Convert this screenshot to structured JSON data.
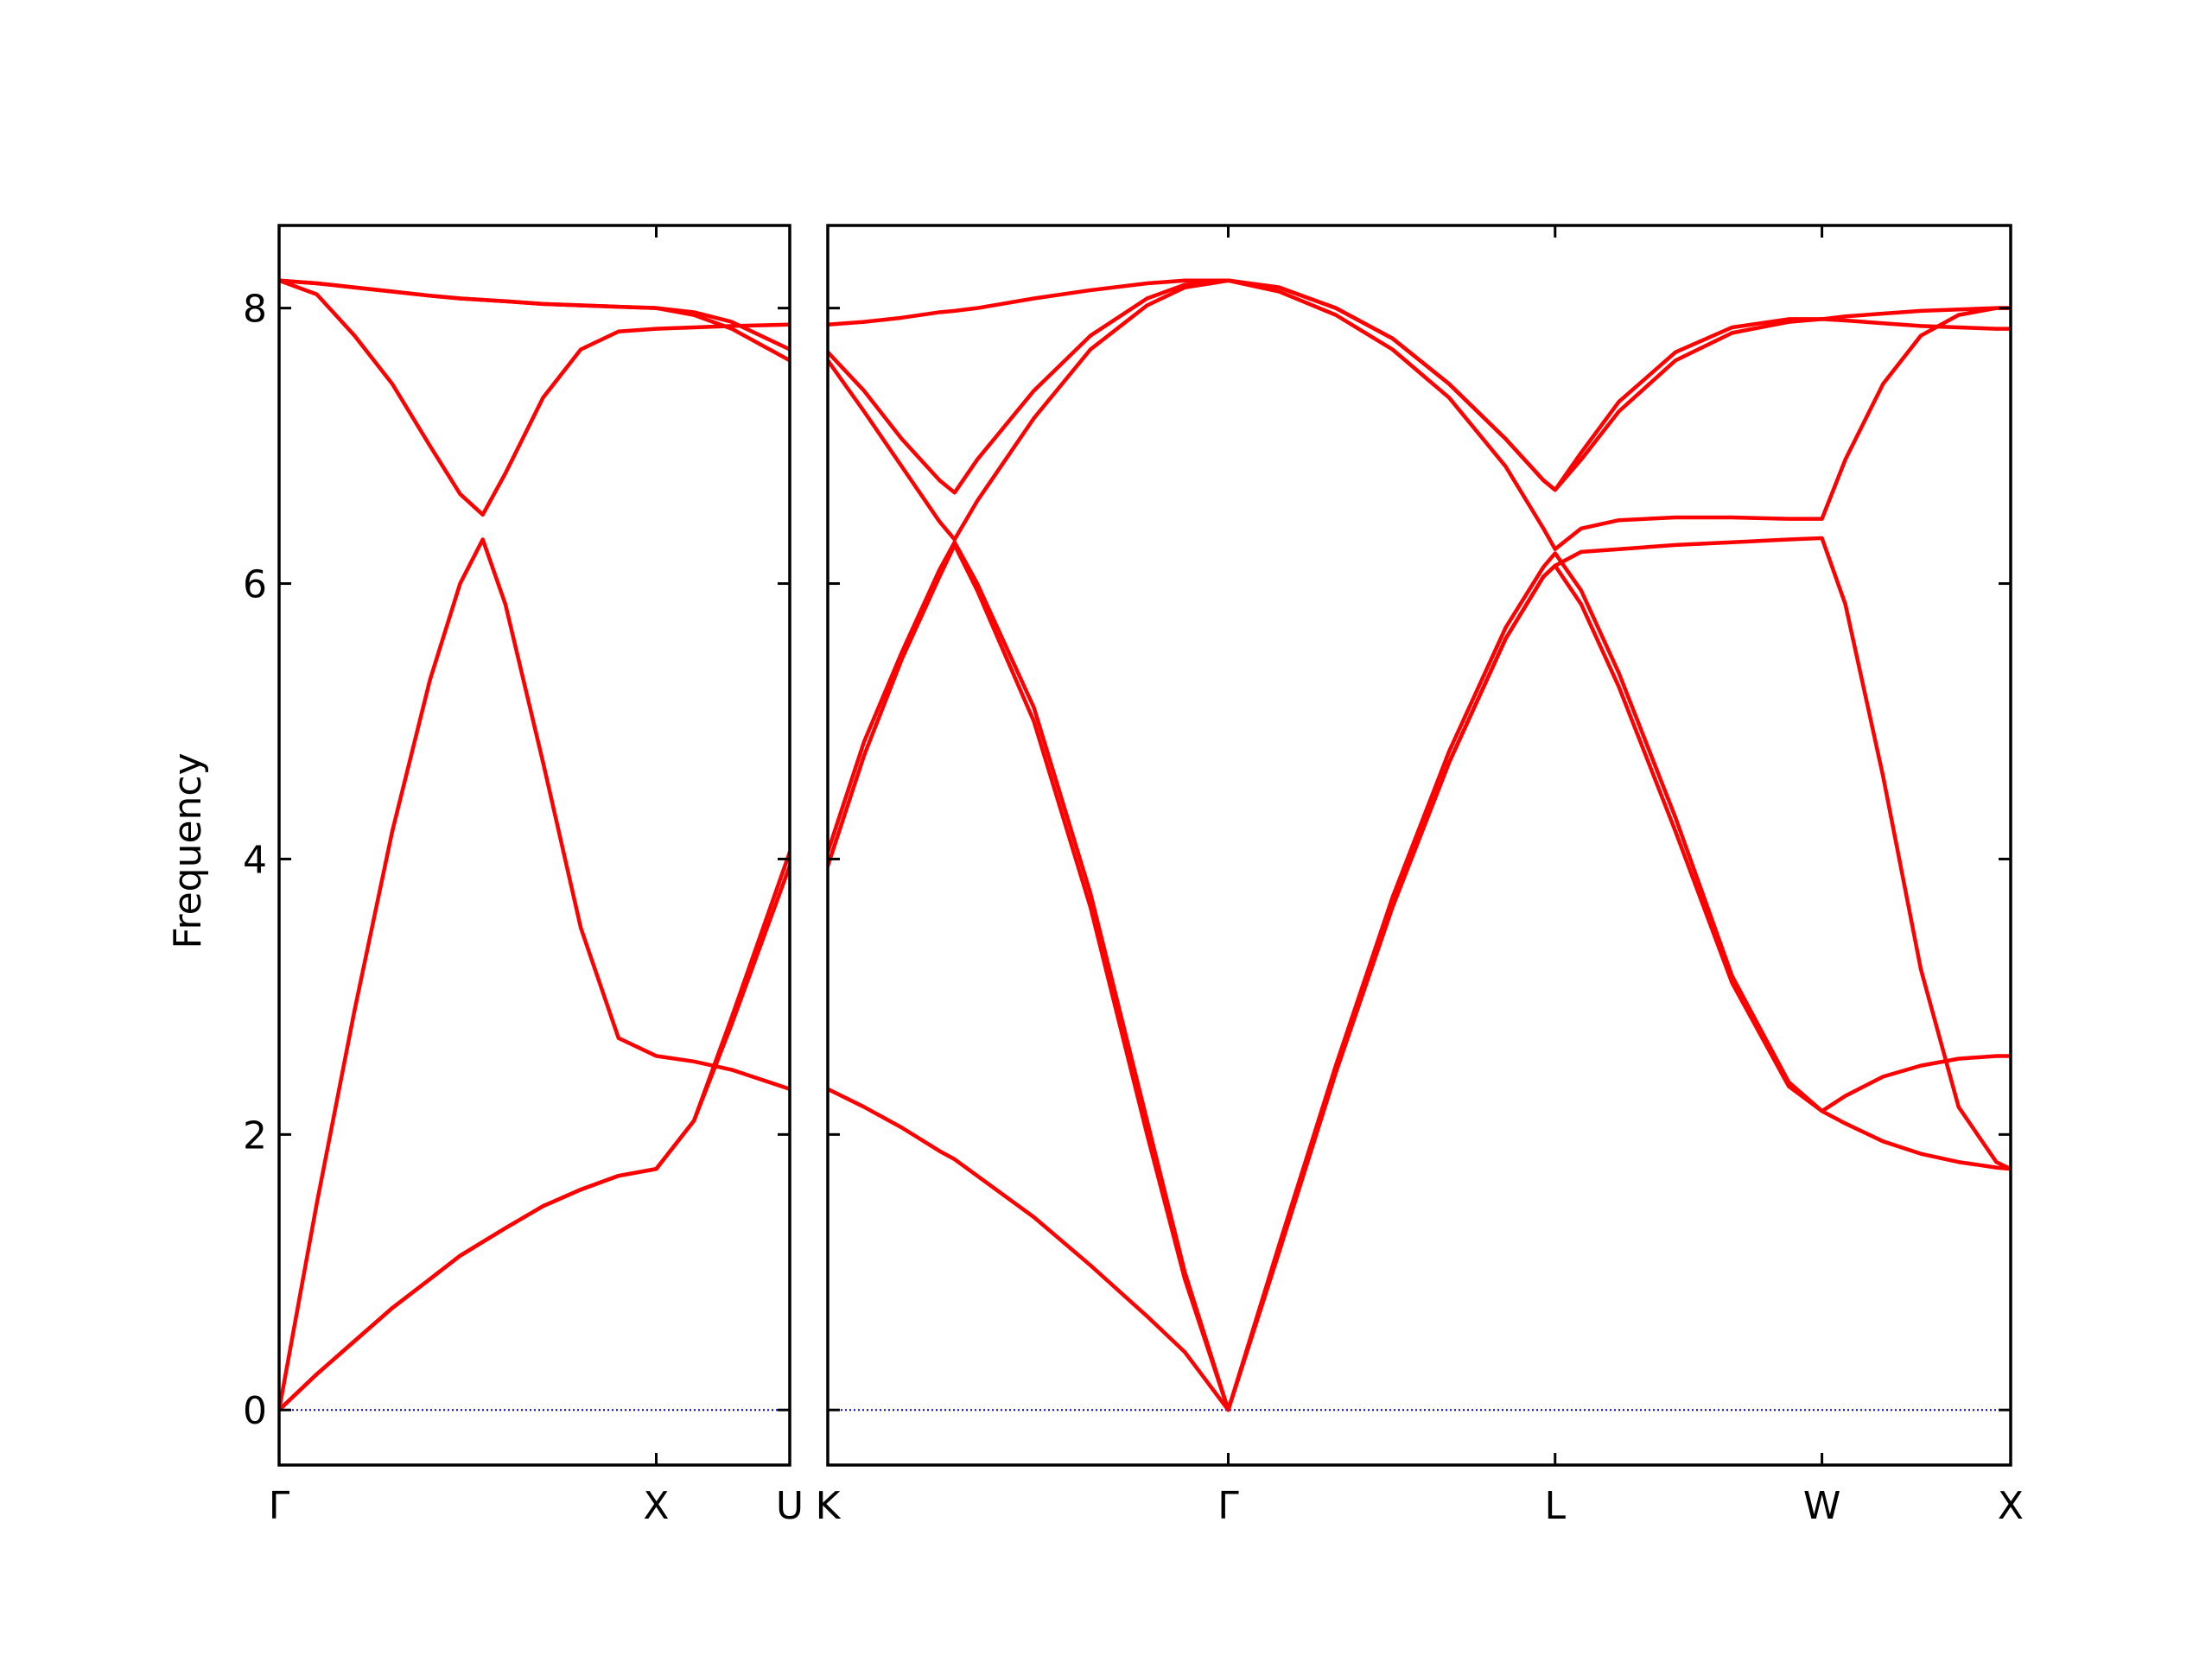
{
  "chart_data": [
    {
      "type": "line",
      "ylabel": "Frequency",
      "x": [
        0,
        0.1,
        0.2,
        0.3,
        0.4,
        0.48,
        0.54,
        0.6,
        0.7,
        0.8,
        0.9,
        1.0,
        1.1,
        1.2,
        1.354
      ],
      "xlim": [
        0,
        1.354
      ],
      "xticks": [
        {
          "value": 0,
          "label": "Γ"
        },
        {
          "value": 1.0,
          "label": "X"
        },
        {
          "value": 1.354,
          "label": "U"
        }
      ],
      "ylim": [
        -0.4,
        8.6
      ],
      "yticks": [
        0,
        2,
        4,
        6,
        8
      ],
      "ytick_labels": true,
      "hline": 0,
      "hline_color": "#0000cc",
      "series": [
        {
          "color": "#ff0000",
          "values": [
            0,
            0.26,
            0.5,
            0.74,
            0.95,
            1.12,
            1.22,
            1.32,
            1.48,
            1.6,
            1.7,
            1.75,
            2.1,
            2.85,
            4.05
          ]
        },
        {
          "color": "#ff0000",
          "values": [
            0,
            0.26,
            0.5,
            0.74,
            0.95,
            1.12,
            1.22,
            1.32,
            1.48,
            1.6,
            1.7,
            1.75,
            2.1,
            2.8,
            3.95
          ]
        },
        {
          "color": "#ff0000",
          "values": [
            0,
            1.5,
            2.9,
            4.2,
            5.3,
            6.0,
            6.32,
            5.85,
            4.7,
            3.5,
            2.7,
            2.57,
            2.53,
            2.47,
            2.33
          ]
        },
        {
          "color": "#ff0000",
          "values": [
            8.2,
            8.1,
            7.8,
            7.45,
            7.0,
            6.65,
            6.5,
            6.8,
            7.35,
            7.7,
            7.83,
            7.85,
            7.86,
            7.87,
            7.88
          ]
        },
        {
          "color": "#ff0000",
          "values": [
            8.2,
            8.18,
            8.15,
            8.12,
            8.09,
            8.07,
            8.06,
            8.05,
            8.03,
            8.02,
            8.01,
            8.0,
            7.95,
            7.85,
            7.62
          ]
        },
        {
          "color": "#ff0000",
          "values": [
            8.2,
            8.18,
            8.15,
            8.12,
            8.09,
            8.07,
            8.06,
            8.05,
            8.03,
            8.02,
            8.01,
            8.0,
            7.97,
            7.9,
            7.7
          ]
        }
      ]
    },
    {
      "type": "line",
      "x": [
        1.354,
        1.45,
        1.55,
        1.65,
        1.69,
        1.75,
        1.9,
        2.05,
        2.2,
        2.3,
        2.415,
        2.55,
        2.7,
        2.85,
        3.0,
        3.15,
        3.25,
        3.281,
        3.35,
        3.45,
        3.6,
        3.75,
        3.9,
        3.988,
        4.05,
        4.15,
        4.25,
        4.35,
        4.45,
        4.488
      ],
      "xlim": [
        1.354,
        4.488
      ],
      "xticks": [
        {
          "value": 1.354,
          "label": "K"
        },
        {
          "value": 2.415,
          "label": "Γ"
        },
        {
          "value": 3.281,
          "label": "L"
        },
        {
          "value": 3.988,
          "label": "W"
        },
        {
          "value": 4.488,
          "label": "X"
        }
      ],
      "ylim": [
        -0.4,
        8.6
      ],
      "yticks": [
        0,
        2,
        4,
        6,
        8
      ],
      "ytick_labels": false,
      "hline": 0,
      "hline_color": "#0000cc",
      "series": [
        {
          "color": "#ff0000",
          "values": [
            2.33,
            2.2,
            2.05,
            1.88,
            1.82,
            1.7,
            1.4,
            1.05,
            0.68,
            0.42,
            0,
            1.15,
            2.45,
            3.65,
            4.7,
            5.6,
            6.05,
            6.13,
            5.85,
            5.25,
            4.2,
            3.1,
            2.35,
            2.17,
            2.08,
            1.95,
            1.86,
            1.8,
            1.76,
            1.75
          ]
        },
        {
          "color": "#ff0000",
          "values": [
            3.95,
            4.75,
            5.45,
            6.05,
            6.28,
            5.95,
            5.0,
            3.65,
            2.0,
            0.95,
            0,
            1.2,
            2.5,
            3.72,
            4.78,
            5.68,
            6.12,
            6.22,
            5.95,
            5.35,
            4.3,
            3.15,
            2.38,
            2.17,
            2.28,
            2.42,
            2.5,
            2.55,
            2.57,
            2.57
          ]
        },
        {
          "color": "#ff0000",
          "values": [
            4.05,
            4.85,
            5.5,
            6.1,
            6.3,
            6.0,
            5.1,
            3.75,
            2.1,
            1.0,
            0,
            1.15,
            2.45,
            3.65,
            4.7,
            5.6,
            6.05,
            6.13,
            6.23,
            6.25,
            6.28,
            6.3,
            6.32,
            6.33,
            5.85,
            4.6,
            3.2,
            2.2,
            1.8,
            1.75
          ]
        },
        {
          "color": "#ff0000",
          "values": [
            7.62,
            7.25,
            6.85,
            6.45,
            6.32,
            6.6,
            7.2,
            7.7,
            8.02,
            8.15,
            8.2,
            8.12,
            7.95,
            7.7,
            7.35,
            6.85,
            6.4,
            6.25,
            6.4,
            6.46,
            6.48,
            6.48,
            6.47,
            6.47,
            6.9,
            7.45,
            7.8,
            7.95,
            8.0,
            8.0
          ]
        },
        {
          "color": "#ff0000",
          "values": [
            7.68,
            7.4,
            7.05,
            6.75,
            6.66,
            6.9,
            7.4,
            7.8,
            8.07,
            8.17,
            8.2,
            8.15,
            8.0,
            7.78,
            7.45,
            7.05,
            6.75,
            6.68,
            6.9,
            7.25,
            7.62,
            7.82,
            7.9,
            7.92,
            7.91,
            7.89,
            7.87,
            7.86,
            7.85,
            7.85
          ]
        },
        {
          "color": "#ff0000",
          "values": [
            7.88,
            7.9,
            7.93,
            7.97,
            7.98,
            8.0,
            8.07,
            8.13,
            8.18,
            8.2,
            8.2,
            8.15,
            8.0,
            7.78,
            7.45,
            7.05,
            6.75,
            6.68,
            6.95,
            7.32,
            7.68,
            7.86,
            7.92,
            7.92,
            7.94,
            7.96,
            7.98,
            7.99,
            8.0,
            8.0
          ]
        }
      ]
    }
  ]
}
